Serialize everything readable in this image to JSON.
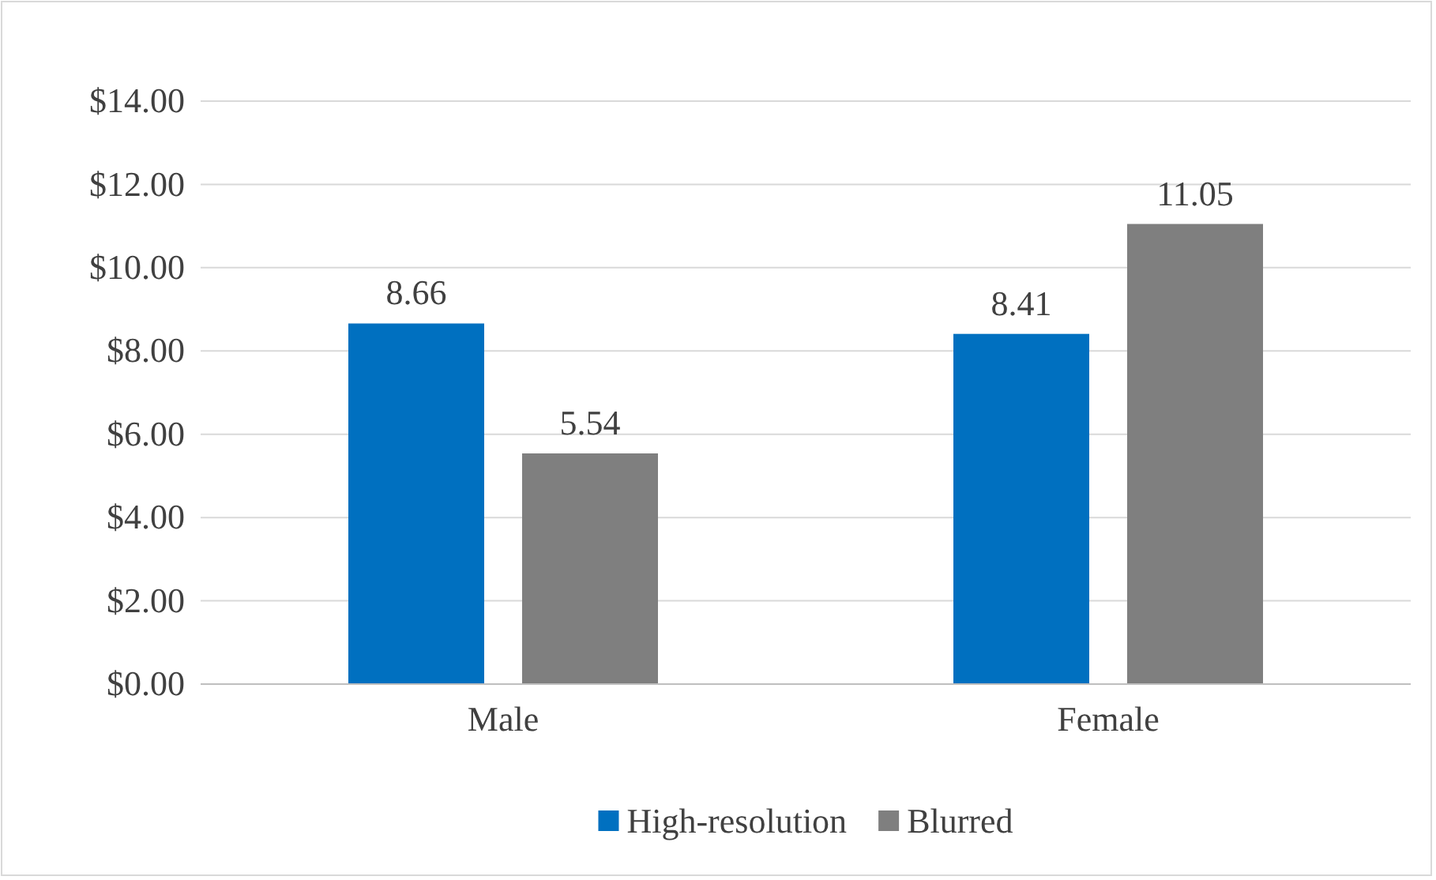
{
  "chart_data": {
    "type": "bar",
    "categories": [
      "Male",
      "Female"
    ],
    "series": [
      {
        "name": "High-resolution",
        "color": "#0070c0",
        "values": [
          8.66,
          8.41
        ]
      },
      {
        "name": "Blurred",
        "color": "#7f7f7f",
        "values": [
          5.54,
          11.05
        ]
      }
    ],
    "ylim": [
      0,
      14
    ],
    "yticks": [
      {
        "value": 0,
        "label": "$0.00"
      },
      {
        "value": 2,
        "label": "$2.00"
      },
      {
        "value": 4,
        "label": "$4.00"
      },
      {
        "value": 6,
        "label": "$6.00"
      },
      {
        "value": 8,
        "label": "$8.00"
      },
      {
        "value": 10,
        "label": "$10.00"
      },
      {
        "value": 12,
        "label": "$12.00"
      },
      {
        "value": 14,
        "label": "$14.00"
      }
    ],
    "grid": "y",
    "legend": "bottom",
    "data_labels": true
  }
}
